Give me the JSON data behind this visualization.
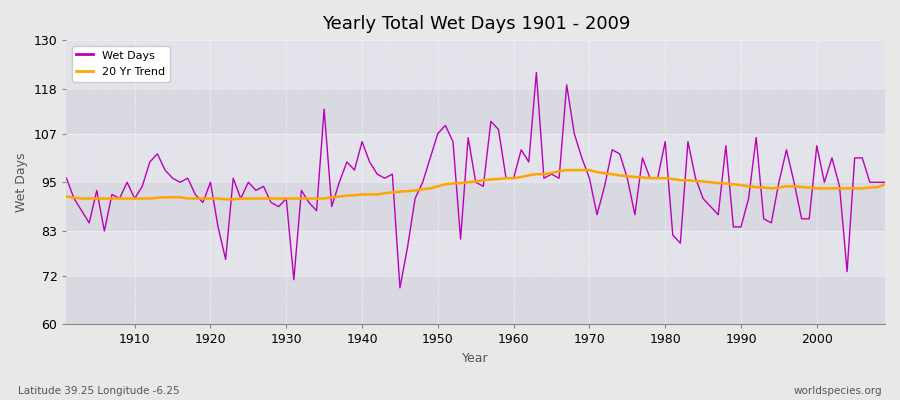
{
  "title": "Yearly Total Wet Days 1901 - 2009",
  "xlabel": "Year",
  "ylabel": "Wet Days",
  "subtitle_left": "Latitude 39.25 Longitude -6.25",
  "subtitle_right": "worldspecies.org",
  "ylim": [
    60,
    130
  ],
  "yticks": [
    60,
    72,
    83,
    95,
    107,
    118,
    130
  ],
  "xticks": [
    1910,
    1920,
    1930,
    1940,
    1950,
    1960,
    1970,
    1980,
    1990,
    2000
  ],
  "xlim": [
    1901,
    2009
  ],
  "line_color": "#bb00bb",
  "trend_color": "#ffa500",
  "bg_color": "#e8e8e8",
  "plot_bg_color": "#e0e0e8",
  "grid_color": "#ffffff",
  "wet_days": {
    "1901": 96,
    "1902": 91,
    "1903": 88,
    "1904": 85,
    "1905": 93,
    "1906": 83,
    "1907": 92,
    "1908": 91,
    "1909": 95,
    "1910": 91,
    "1911": 94,
    "1912": 100,
    "1913": 102,
    "1914": 98,
    "1915": 96,
    "1916": 95,
    "1917": 96,
    "1918": 92,
    "1919": 90,
    "1920": 95,
    "1921": 84,
    "1922": 76,
    "1923": 96,
    "1924": 91,
    "1925": 95,
    "1926": 93,
    "1927": 94,
    "1928": 90,
    "1929": 89,
    "1930": 91,
    "1931": 71,
    "1932": 93,
    "1933": 90,
    "1934": 88,
    "1935": 113,
    "1936": 89,
    "1937": 95,
    "1938": 100,
    "1939": 98,
    "1940": 105,
    "1941": 100,
    "1942": 97,
    "1943": 96,
    "1944": 97,
    "1945": 69,
    "1946": 79,
    "1947": 91,
    "1948": 95,
    "1949": 101,
    "1950": 107,
    "1951": 109,
    "1952": 105,
    "1953": 81,
    "1954": 106,
    "1955": 95,
    "1956": 94,
    "1957": 110,
    "1958": 108,
    "1959": 96,
    "1960": 96,
    "1961": 103,
    "1962": 100,
    "1963": 122,
    "1964": 96,
    "1965": 97,
    "1966": 96,
    "1967": 119,
    "1968": 107,
    "1969": 101,
    "1970": 96,
    "1971": 87,
    "1972": 94,
    "1973": 103,
    "1974": 102,
    "1975": 96,
    "1976": 87,
    "1977": 101,
    "1978": 96,
    "1979": 96,
    "1980": 105,
    "1981": 82,
    "1982": 80,
    "1983": 105,
    "1984": 96,
    "1985": 91,
    "1986": 89,
    "1987": 87,
    "1988": 104,
    "1989": 84,
    "1990": 84,
    "1991": 91,
    "1992": 106,
    "1993": 86,
    "1994": 85,
    "1995": 95,
    "1996": 103,
    "1997": 95,
    "1998": 86,
    "1999": 86,
    "2000": 104,
    "2001": 95,
    "2002": 101,
    "2003": 94,
    "2004": 73,
    "2005": 101,
    "2006": 101,
    "2007": 95,
    "2008": 95,
    "2009": 95
  },
  "trend_days": {
    "1901": 91.5,
    "1902": 91.2,
    "1903": 91.0,
    "1904": 91.0,
    "1905": 91.0,
    "1906": 91.0,
    "1907": 91.0,
    "1908": 91.0,
    "1909": 91.0,
    "1910": 91.0,
    "1911": 91.0,
    "1912": 91.0,
    "1913": 91.2,
    "1914": 91.3,
    "1915": 91.3,
    "1916": 91.3,
    "1917": 91.0,
    "1918": 91.0,
    "1919": 91.0,
    "1920": 91.0,
    "1921": 91.0,
    "1922": 90.8,
    "1923": 90.8,
    "1924": 91.0,
    "1925": 91.0,
    "1926": 91.0,
    "1927": 91.0,
    "1928": 91.0,
    "1929": 91.0,
    "1930": 91.0,
    "1931": 91.0,
    "1932": 91.0,
    "1933": 91.0,
    "1934": 91.0,
    "1935": 91.0,
    "1936": 91.3,
    "1937": 91.5,
    "1938": 91.7,
    "1939": 91.8,
    "1940": 92.0,
    "1941": 92.0,
    "1942": 92.0,
    "1943": 92.3,
    "1944": 92.5,
    "1945": 92.7,
    "1946": 92.8,
    "1947": 93.0,
    "1948": 93.3,
    "1949": 93.5,
    "1950": 94.0,
    "1951": 94.5,
    "1952": 94.7,
    "1953": 94.8,
    "1954": 95.0,
    "1955": 95.2,
    "1956": 95.5,
    "1957": 95.7,
    "1958": 95.8,
    "1959": 96.0,
    "1960": 96.0,
    "1961": 96.3,
    "1962": 96.7,
    "1963": 97.0,
    "1964": 97.0,
    "1965": 97.3,
    "1966": 97.7,
    "1967": 98.0,
    "1968": 98.0,
    "1969": 98.0,
    "1970": 98.0,
    "1971": 97.5,
    "1972": 97.2,
    "1973": 97.0,
    "1974": 96.7,
    "1975": 96.5,
    "1976": 96.3,
    "1977": 96.2,
    "1978": 96.0,
    "1979": 96.0,
    "1980": 96.0,
    "1981": 95.8,
    "1982": 95.5,
    "1983": 95.5,
    "1984": 95.3,
    "1985": 95.2,
    "1986": 95.0,
    "1987": 94.8,
    "1988": 94.7,
    "1989": 94.5,
    "1990": 94.3,
    "1991": 94.0,
    "1992": 93.8,
    "1993": 93.7,
    "1994": 93.5,
    "1995": 93.7,
    "1996": 94.0,
    "1997": 94.0,
    "1998": 93.8,
    "1999": 93.7,
    "2000": 93.5,
    "2001": 93.5,
    "2002": 93.5,
    "2003": 93.5,
    "2004": 93.5,
    "2005": 93.5,
    "2006": 93.5,
    "2007": 93.7,
    "2008": 93.8,
    "2009": 94.5
  }
}
